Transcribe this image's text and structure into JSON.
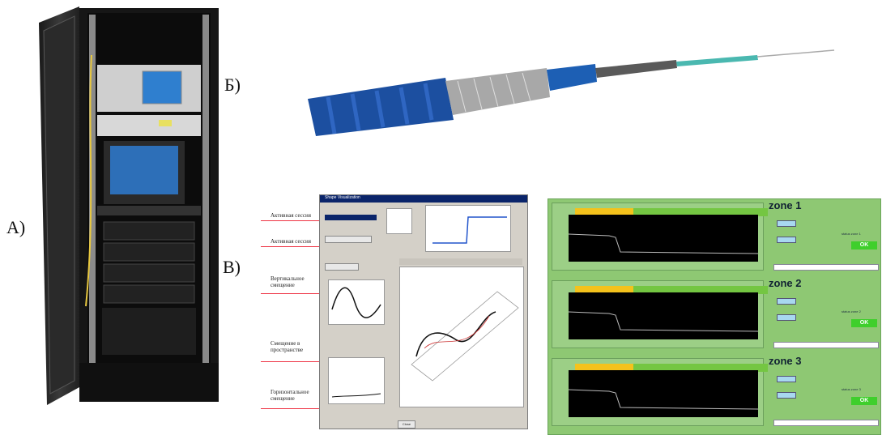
{
  "labels": {
    "a": "А)",
    "b": "Б)",
    "v": "В)"
  },
  "software": {
    "window_title": "Shape Visualization",
    "callouts": [
      "Активная сессия",
      "Активная сессия",
      "Вертикальное смещение",
      "Смещение в пространстве",
      "Горизонтальное смещение"
    ],
    "button_label": "Close"
  },
  "zones": [
    {
      "title": "zone 1",
      "status": "status zone 1",
      "ok": "OK"
    },
    {
      "title": "zone 2",
      "status": "status zone 2",
      "ok": "OK"
    },
    {
      "title": "zone 3",
      "status": "status zone 3",
      "ok": "OK"
    }
  ],
  "colors": {
    "zone_bg": "#8ec873",
    "ok_green": "#3fcf2c",
    "warn_yellow": "#f4c21c",
    "cable_blue": "#1c4fa0"
  }
}
